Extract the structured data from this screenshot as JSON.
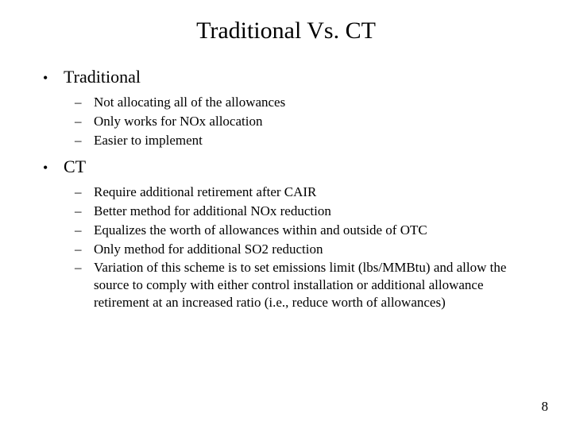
{
  "title": "Traditional Vs. CT",
  "sections": [
    {
      "label": "Traditional",
      "items": [
        "Not allocating all of the allowances",
        "Only works for NOx allocation",
        "Easier to implement"
      ]
    },
    {
      "label": "CT",
      "items": [
        "Require additional retirement after CAIR",
        "Better method for additional NOx reduction",
        "Equalizes the worth of allowances within and outside of OTC",
        "Only method for additional SO2 reduction",
        "Variation of this scheme is to set emissions limit (lbs/MMBtu) and allow the source to comply with either control installation or additional allowance retirement at an increased ratio (i.e., reduce worth of allowances)"
      ]
    }
  ],
  "page_number": "8"
}
